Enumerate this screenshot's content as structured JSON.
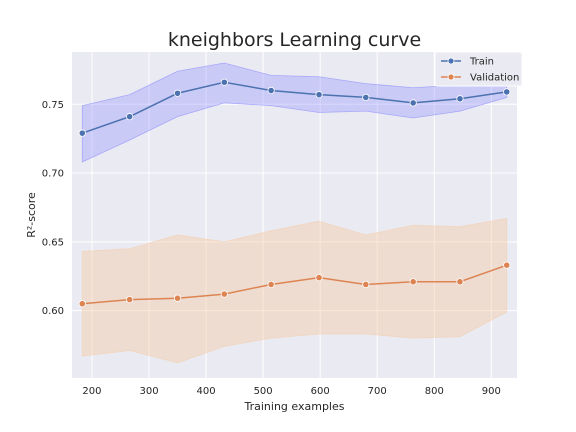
{
  "chart_data": {
    "type": "line",
    "title": "kneighbors Learning curve",
    "xlabel": "Training examples",
    "ylabel": "R²-score",
    "xlim": [
      165,
      945
    ],
    "ylim": [
      0.551,
      0.788
    ],
    "xticks": [
      200,
      300,
      400,
      500,
      600,
      700,
      800,
      900
    ],
    "yticks": [
      0.6,
      0.65,
      0.7,
      0.75
    ],
    "ytick_labels": [
      "0.60",
      "0.65",
      "0.70",
      "0.75"
    ],
    "grid": true,
    "legend_position": "top-right",
    "x": [
      183,
      266,
      350,
      432,
      514,
      598,
      680,
      763,
      845,
      927
    ],
    "series": [
      {
        "name": "Train",
        "color": "#4c72b0",
        "band_color": "#8787ff",
        "values": [
          0.729,
          0.741,
          0.758,
          0.766,
          0.76,
          0.757,
          0.755,
          0.751,
          0.754,
          0.759
        ],
        "lower": [
          0.708,
          0.724,
          0.741,
          0.751,
          0.749,
          0.744,
          0.745,
          0.74,
          0.745,
          0.755
        ],
        "upper": [
          0.749,
          0.757,
          0.774,
          0.78,
          0.771,
          0.77,
          0.765,
          0.762,
          0.764,
          0.764
        ]
      },
      {
        "name": "Validation",
        "color": "#dd8452",
        "band_color": "#f5cda8",
        "values": [
          0.605,
          0.608,
          0.609,
          0.612,
          0.619,
          0.624,
          0.619,
          0.621,
          0.621,
          0.633
        ],
        "lower": [
          0.567,
          0.571,
          0.562,
          0.574,
          0.58,
          0.583,
          0.583,
          0.58,
          0.581,
          0.599
        ],
        "upper": [
          0.643,
          0.645,
          0.655,
          0.65,
          0.658,
          0.665,
          0.655,
          0.662,
          0.661,
          0.667
        ]
      }
    ]
  }
}
